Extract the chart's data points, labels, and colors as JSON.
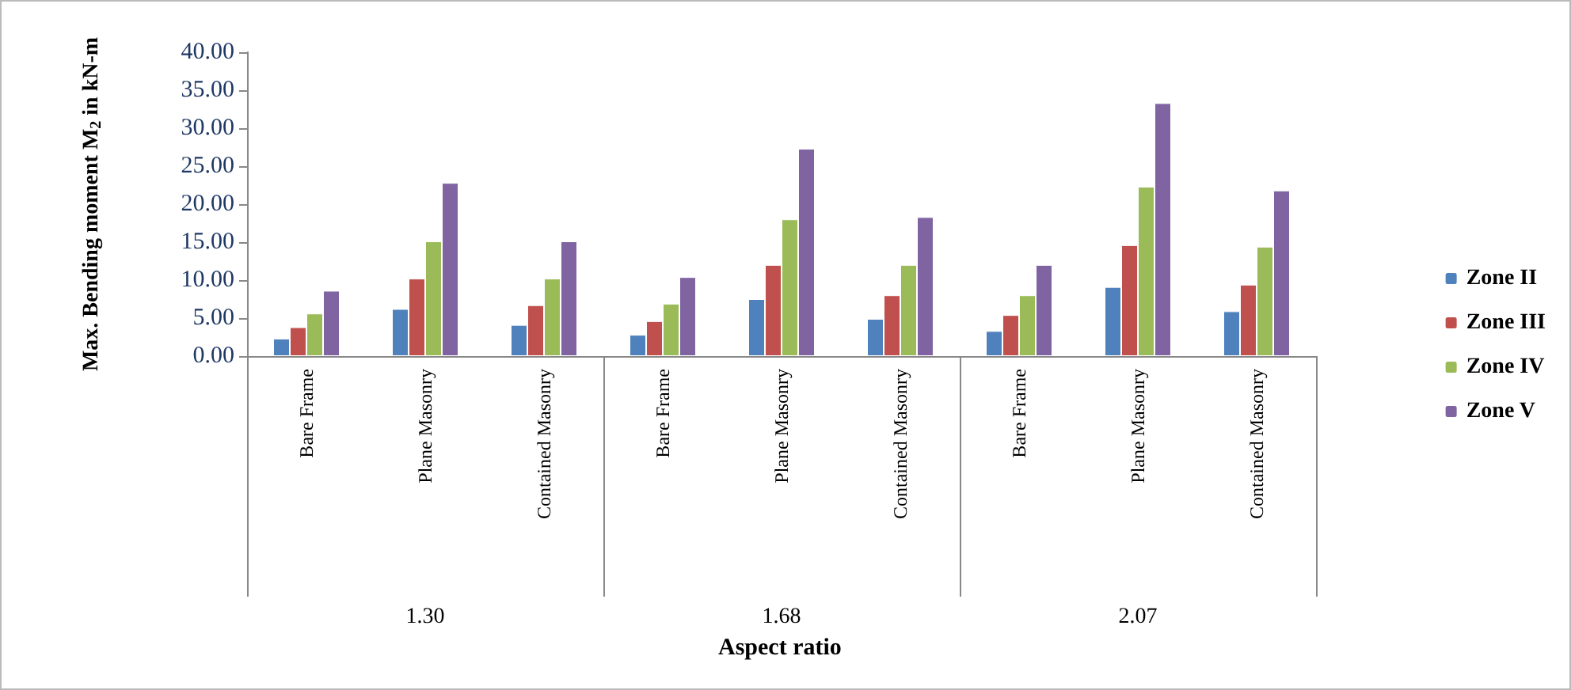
{
  "chart_data": {
    "type": "bar",
    "ylabel": "Max. Bending moment M$_{2}$ in kN-m",
    "categories": [
      "Bare Frame",
      "Plane Masonry",
      "Contained Masonry",
      "Bare Frame",
      "Plane Masonry",
      "Contained Masonry",
      "Bare Frame",
      "Plane Masonry",
      "Contained Masonry"
    ],
    "annotations": [
      "1.30",
      "1.68",
      "2.07",
      "Aspect ratio"
    ],
    "series": [
      {
        "name": "Zone II",
        "color": "#4f81bd",
        "values": [
          2.3,
          6.2,
          4.1,
          2.8,
          7.5,
          4.9,
          3.3,
          9.1,
          5.9
        ]
      },
      {
        "name": "Zone III",
        "color": "#c0504d",
        "values": [
          3.8,
          10.2,
          6.7,
          4.6,
          12.0,
          8.0,
          5.4,
          14.6,
          9.4
        ]
      },
      {
        "name": "Zone IV",
        "color": "#9bbb59",
        "values": [
          5.6,
          15.1,
          10.2,
          6.9,
          18.0,
          12.0,
          8.0,
          22.3,
          14.4
        ]
      },
      {
        "name": "Zone V",
        "color": "#8064a2",
        "values": [
          8.6,
          22.8,
          15.1,
          10.4,
          27.3,
          18.3,
          12.0,
          33.3,
          21.8
        ]
      }
    ],
    "ylim": [
      0,
      40
    ],
    "yticks": [
      {
        "value": 0,
        "label": "0.00"
      },
      {
        "value": 5,
        "label": "5.00"
      },
      {
        "value": 10,
        "label": "10.00"
      },
      {
        "value": 15,
        "label": "15.00"
      },
      {
        "value": 20,
        "label": "20.00"
      },
      {
        "value": 25,
        "label": "25.00"
      },
      {
        "value": 30,
        "label": "30.00"
      },
      {
        "value": 35,
        "label": "35.00"
      },
      {
        "value": 40,
        "label": "40.00"
      }
    ],
    "grid": false,
    "legend": "right"
  }
}
